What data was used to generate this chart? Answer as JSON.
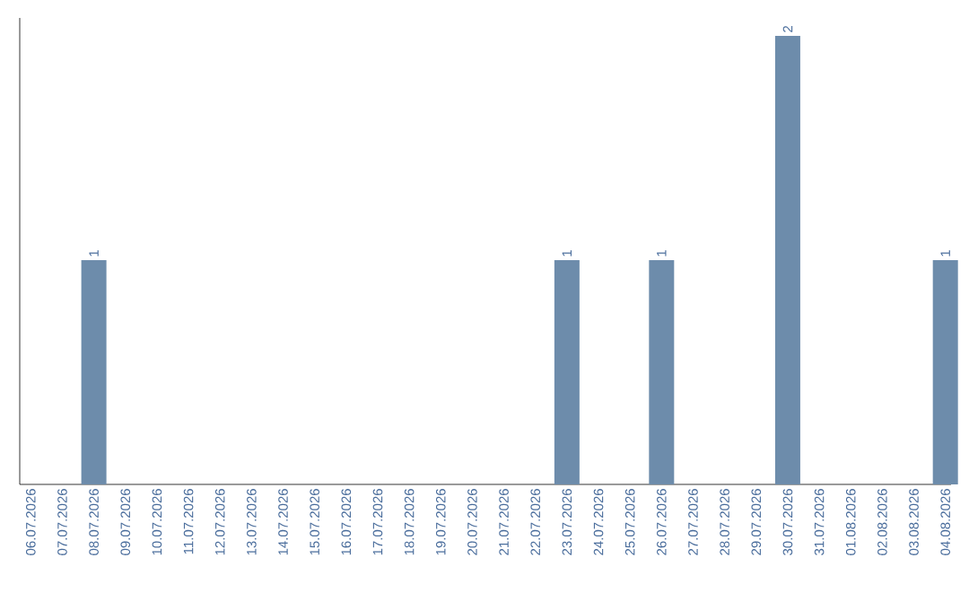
{
  "chart_data": {
    "type": "bar",
    "categories": [
      "06.07.2026",
      "07.07.2026",
      "08.07.2026",
      "09.07.2026",
      "10.07.2026",
      "11.07.2026",
      "12.07.2026",
      "13.07.2026",
      "14.07.2026",
      "15.07.2026",
      "16.07.2026",
      "17.07.2026",
      "18.07.2026",
      "19.07.2026",
      "20.07.2026",
      "21.07.2026",
      "22.07.2026",
      "23.07.2026",
      "24.07.2026",
      "25.07.2026",
      "26.07.2026",
      "27.07.2026",
      "28.07.2026",
      "29.07.2026",
      "30.07.2026",
      "31.07.2026",
      "01.08.2026",
      "02.08.2026",
      "03.08.2026",
      "04.08.2026"
    ],
    "values": [
      0,
      0,
      1,
      0,
      0,
      0,
      0,
      0,
      0,
      0,
      0,
      0,
      0,
      0,
      0,
      0,
      0,
      1,
      0,
      0,
      1,
      0,
      0,
      0,
      2,
      0,
      0,
      0,
      0,
      1
    ],
    "value_labels": [
      null,
      null,
      "1",
      null,
      null,
      null,
      null,
      null,
      null,
      null,
      null,
      null,
      null,
      null,
      null,
      null,
      null,
      "1",
      null,
      null,
      "1",
      null,
      null,
      null,
      "2",
      null,
      null,
      null,
      null,
      "1"
    ],
    "color": "#6d8cab",
    "tick_labels": "x"
  }
}
